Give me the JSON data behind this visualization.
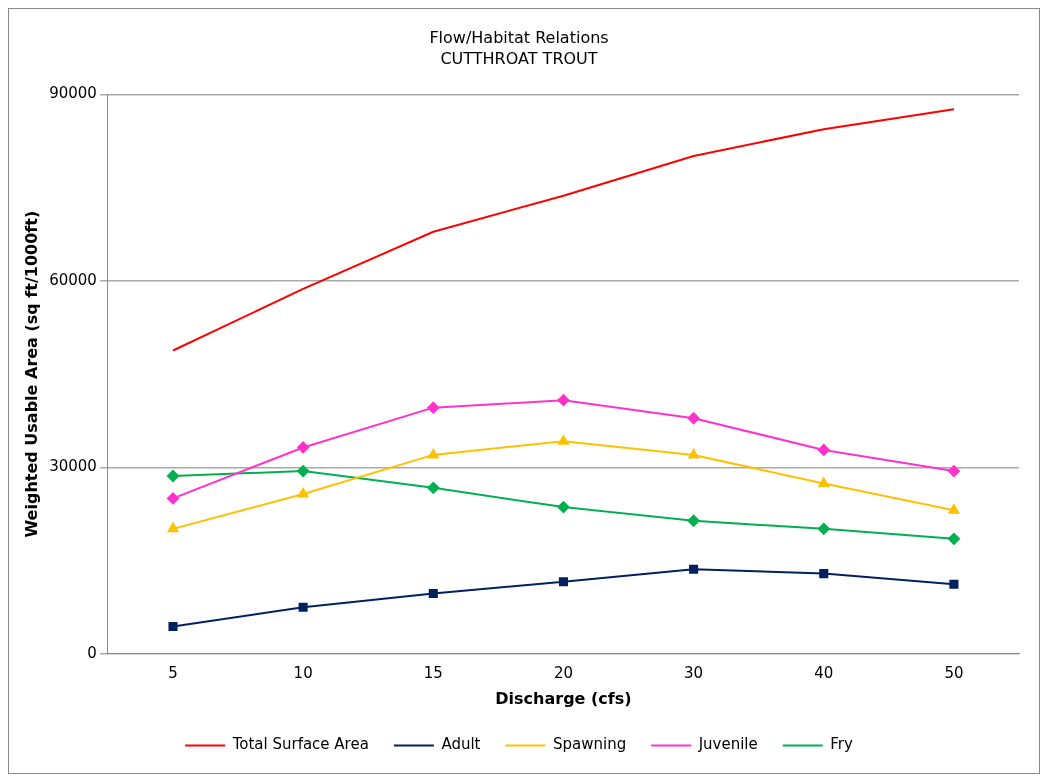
{
  "chart_data": {
    "type": "line",
    "title": "Flow/Habitat Relations",
    "subtitle": "CUTTHROAT TROUT",
    "xlabel": "Discharge (cfs)",
    "ylabel": "Weighted Usable Area (sq ft/1000ft)",
    "categories": [
      "5",
      "10",
      "15",
      "20",
      "30",
      "40",
      "50"
    ],
    "series": [
      {
        "name": "Total Surface Area",
        "color": "#ff0000",
        "marker": "none",
        "values": [
          48800,
          58700,
          67900,
          73700,
          80100,
          84400,
          87600
        ]
      },
      {
        "name": "Adult",
        "color": "#002060",
        "marker": "square",
        "values": [
          4400,
          7500,
          9700,
          11600,
          13600,
          12900,
          11200
        ]
      },
      {
        "name": "Spawning",
        "color": "#ffc000",
        "marker": "triangle",
        "values": [
          20100,
          25700,
          32000,
          34200,
          32000,
          27400,
          23100
        ]
      },
      {
        "name": "Juvenile",
        "color": "#ff33cc",
        "marker": "diamond",
        "values": [
          25000,
          33200,
          39600,
          40800,
          37900,
          32800,
          29400
        ]
      },
      {
        "name": "Fry",
        "color": "#00b050",
        "marker": "diamond",
        "values": [
          28600,
          29400,
          26700,
          23600,
          21400,
          20100,
          18500
        ]
      }
    ],
    "ylim": [
      0,
      90000
    ],
    "yticks": [
      0,
      30000,
      60000,
      90000
    ],
    "grid": "y",
    "legend": "bottom",
    "line_style": "solid"
  }
}
